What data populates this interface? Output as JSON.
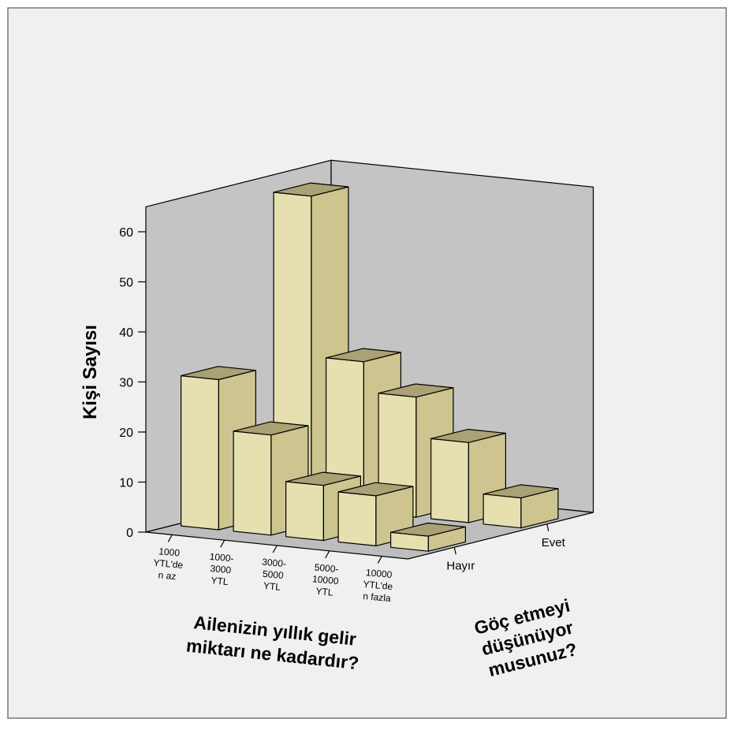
{
  "chart_data": {
    "type": "bar",
    "subtype": "3d-bar",
    "ylabel": "Kişi Sayısı",
    "xlabel_lines": [
      "Ailenizin yıllık gelir",
      "miktarı ne kadardır?"
    ],
    "zlabel_lines": [
      "Göç etmeyi",
      "düşünüyor",
      "musunuz?"
    ],
    "ylim": [
      0,
      65
    ],
    "yticks": [
      "0",
      "10",
      "20",
      "30",
      "40",
      "50",
      "60"
    ],
    "categories": [
      [
        "1000",
        "YTL'de",
        "n az"
      ],
      [
        "1000-",
        "3000",
        "YTL"
      ],
      [
        "3000-",
        "5000",
        "YTL"
      ],
      [
        "5000-",
        "10000",
        "YTL"
      ],
      [
        "10000",
        "YTL'de",
        "n fazla"
      ]
    ],
    "series": [
      {
        "name": "Hayır",
        "values": [
          30,
          20,
          11,
          10,
          3
        ]
      },
      {
        "name": "Evet",
        "values": [
          62,
          30,
          24,
          16,
          6
        ]
      }
    ],
    "colors": {
      "background": "#f0f0f0",
      "wall": "#c4c4c4",
      "floor": "#bdbdbd",
      "bar_front": "#e6dfb0",
      "bar_side": "#cdc490",
      "bar_top": "#aaa174",
      "edge": "#000000"
    }
  }
}
